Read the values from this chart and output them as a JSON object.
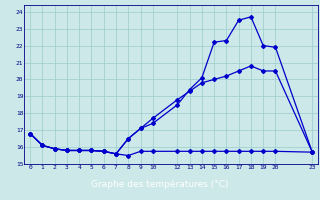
{
  "xlabel": "Graphe des températures (°C)",
  "background_color": "#cce8e8",
  "grid_color": "#99cccc",
  "line_color": "#0000cc",
  "axis_label_color": "#ffffff",
  "axis_bar_color": "#0000aa",
  "tick_color": "#000088",
  "xlim": [
    -0.5,
    23.5
  ],
  "ylim": [
    15.0,
    24.4
  ],
  "yticks": [
    15,
    16,
    17,
    18,
    19,
    20,
    21,
    22,
    23,
    24
  ],
  "xticks": [
    0,
    1,
    2,
    3,
    4,
    5,
    6,
    7,
    8,
    9,
    10,
    12,
    13,
    14,
    15,
    16,
    17,
    18,
    19,
    20,
    23
  ],
  "line1_x": [
    0,
    1,
    2,
    3,
    4,
    5,
    6,
    7,
    8,
    9,
    10,
    12,
    13,
    14,
    15,
    16,
    17,
    18,
    19,
    20,
    23
  ],
  "line1_y": [
    16.8,
    16.1,
    15.9,
    15.8,
    15.8,
    15.8,
    15.75,
    15.6,
    15.5,
    15.75,
    15.75,
    15.75,
    15.75,
    15.75,
    15.75,
    15.75,
    15.75,
    15.75,
    15.75,
    15.75,
    15.7
  ],
  "line2_x": [
    0,
    1,
    2,
    3,
    4,
    5,
    6,
    7,
    8,
    9,
    10,
    12,
    13,
    14,
    15,
    16,
    17,
    18,
    19,
    20,
    23
  ],
  "line2_y": [
    16.8,
    16.1,
    15.9,
    15.8,
    15.8,
    15.8,
    15.75,
    15.6,
    16.5,
    17.1,
    17.7,
    18.8,
    19.3,
    19.8,
    20.0,
    20.2,
    20.5,
    20.8,
    20.5,
    20.5,
    15.7
  ],
  "line3_x": [
    0,
    1,
    2,
    3,
    4,
    5,
    6,
    7,
    8,
    9,
    10,
    12,
    13,
    14,
    15,
    16,
    17,
    18,
    19,
    20,
    23
  ],
  "line3_y": [
    16.8,
    16.1,
    15.9,
    15.8,
    15.8,
    15.8,
    15.75,
    15.6,
    16.5,
    17.1,
    17.4,
    18.5,
    19.4,
    20.1,
    22.2,
    22.3,
    23.5,
    23.7,
    22.0,
    21.9,
    15.7
  ]
}
